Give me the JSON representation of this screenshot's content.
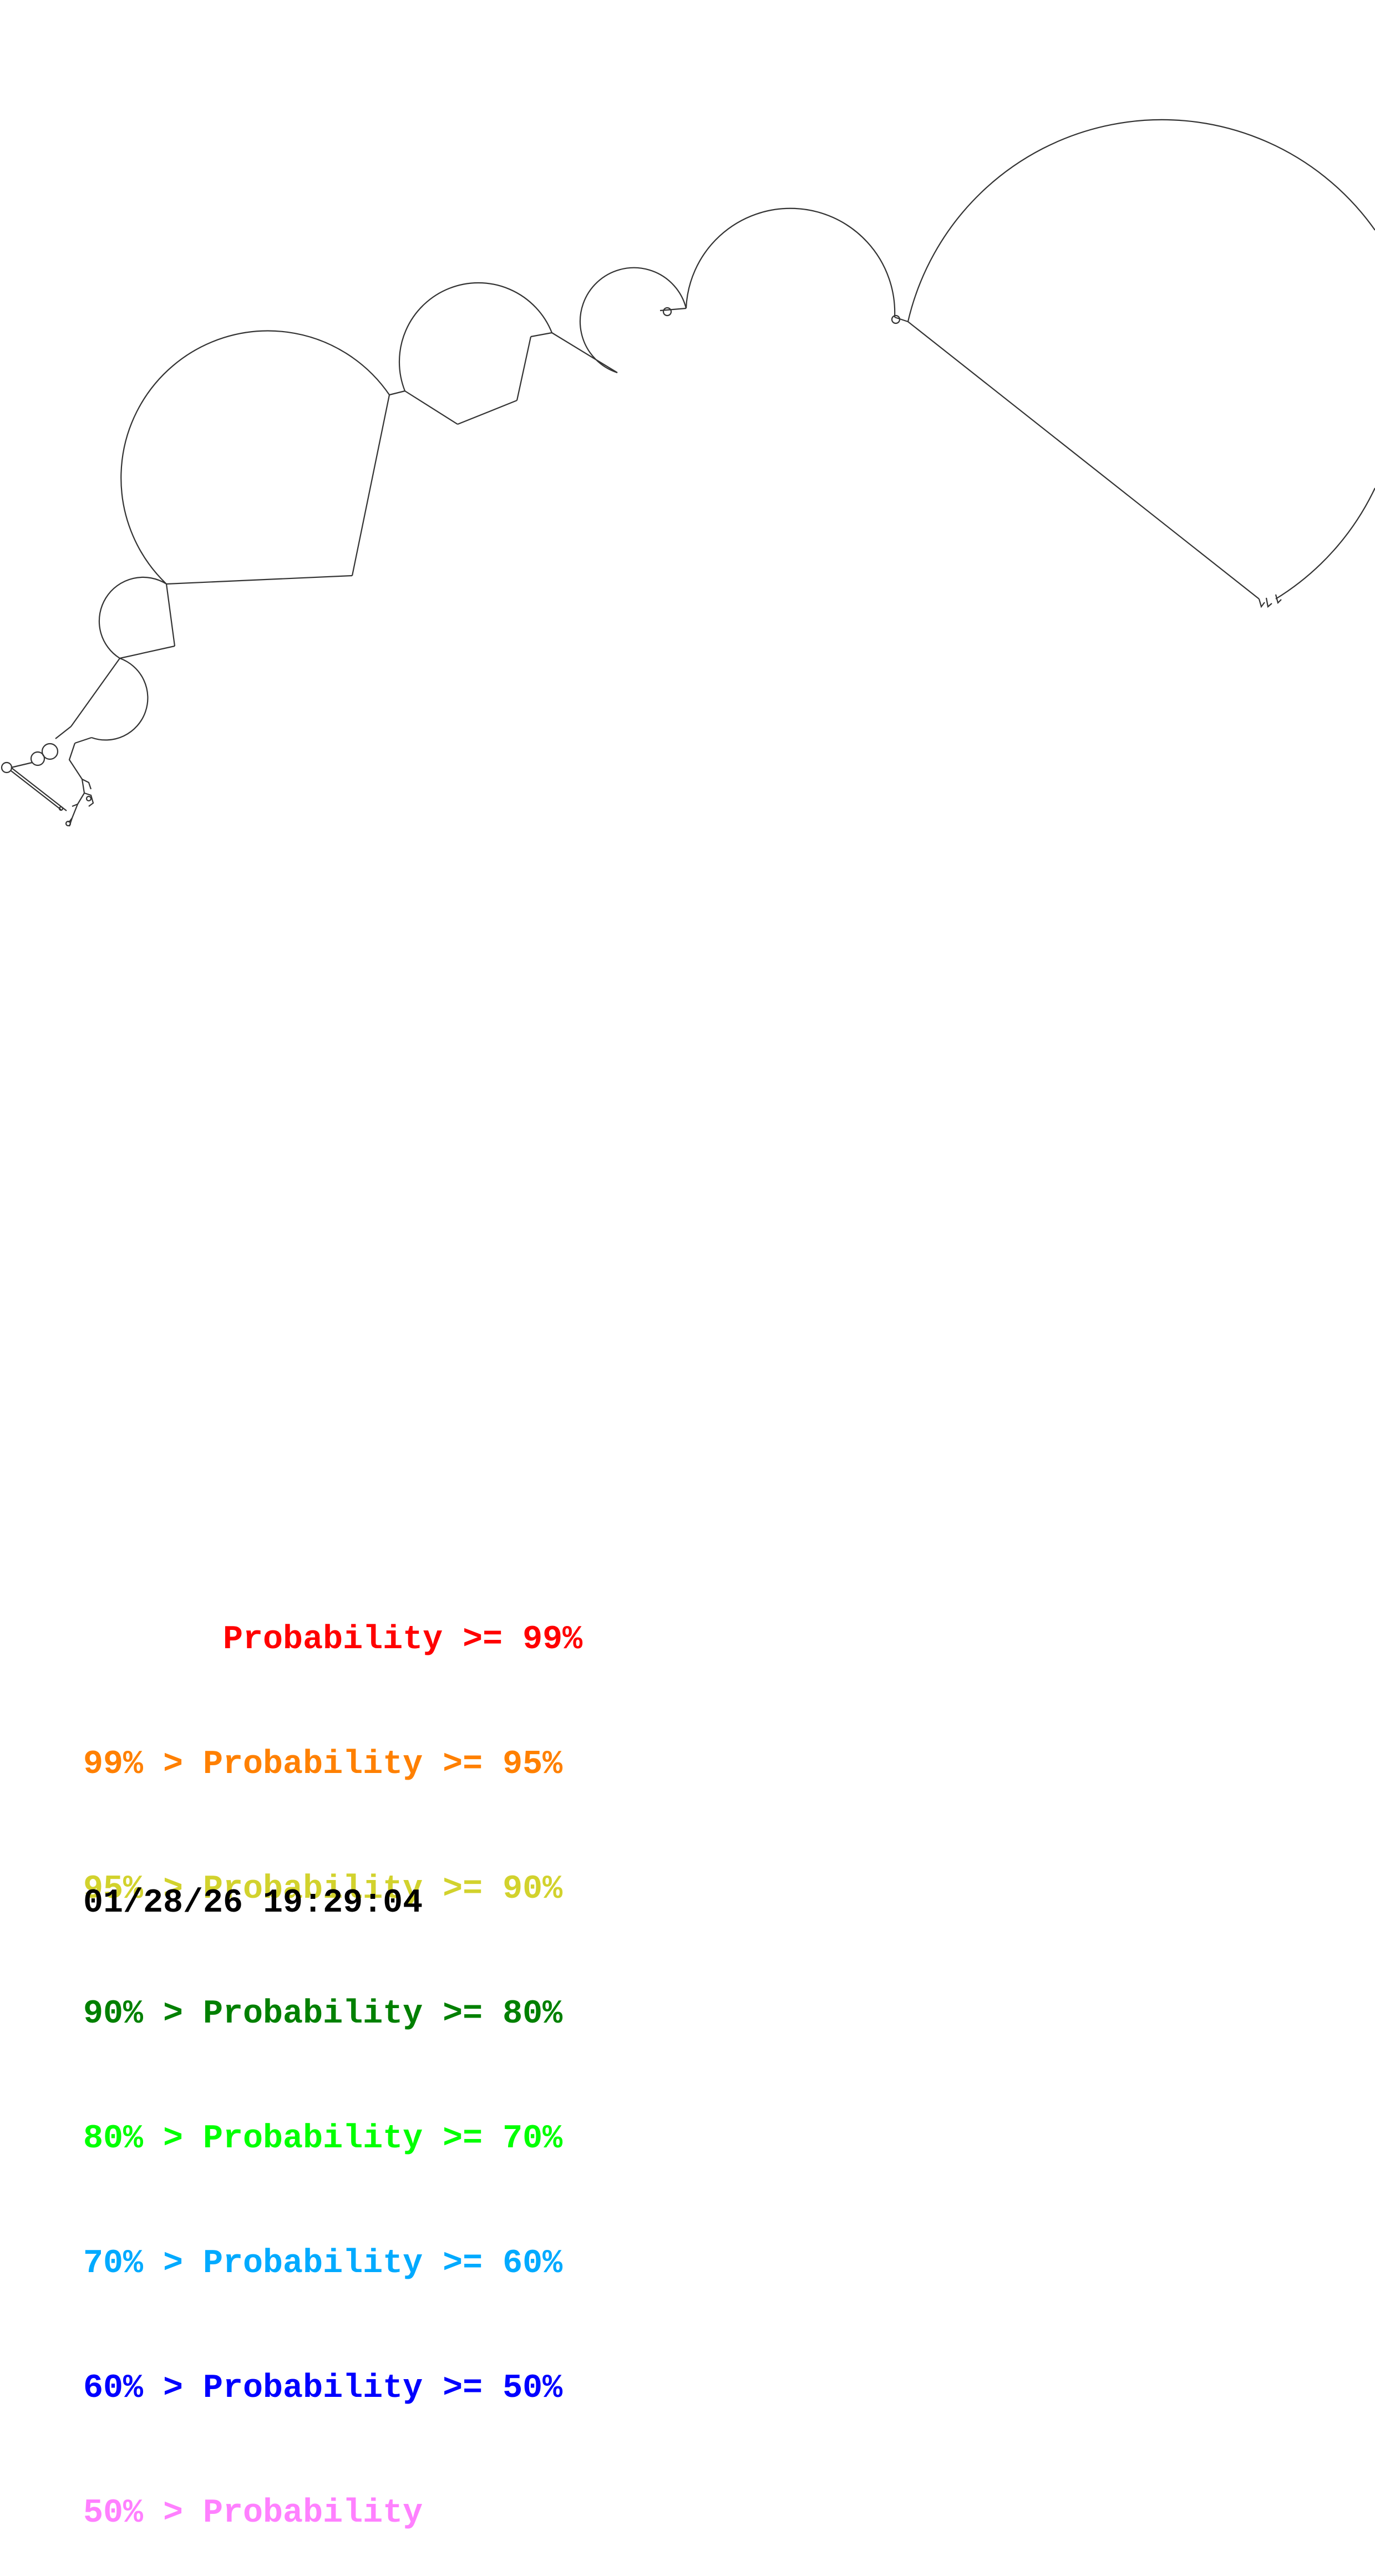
{
  "legend": {
    "rows": [
      {
        "text": "       Probability >= 99%",
        "color": "#ff0000"
      },
      {
        "text": "99% > Probability >= 95%",
        "color": "#ff8000"
      },
      {
        "text": "95% > Probability >= 90%",
        "color": "#d2d22d"
      },
      {
        "text": "90% > Probability >= 80%",
        "color": "#008000"
      },
      {
        "text": "80% > Probability >= 70%",
        "color": "#00ff00"
      },
      {
        "text": "70% > Probability >= 60%",
        "color": "#00aaff"
      },
      {
        "text": "60% > Probability >= 50%",
        "color": "#0000ff"
      },
      {
        "text": "50% > Probability",
        "color": "#ff80ff"
      }
    ]
  },
  "timestamp": "01/28/26 19:29:04",
  "diagram": {
    "line_color": "#333333"
  }
}
